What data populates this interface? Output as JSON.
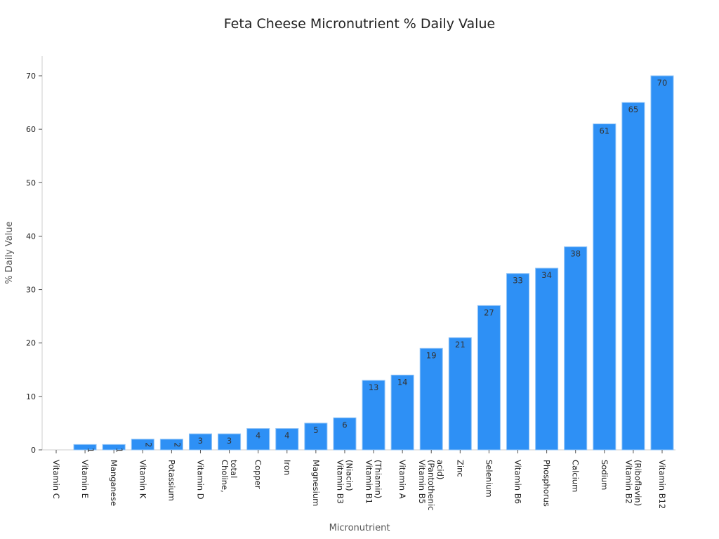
{
  "chart_data": {
    "type": "bar",
    "title": "Feta Cheese Micronutrient % Daily Value",
    "xlabel": "Micronutrient",
    "ylabel": "% Daily Value",
    "ylim": [
      0,
      70
    ],
    "yticks": [
      "0",
      "10",
      "20",
      "30",
      "40",
      "50",
      "60",
      "70"
    ],
    "grid": false,
    "bar_color": "#2e90f5",
    "categories": [
      [
        "Vitamin C"
      ],
      [
        "Vitamin E"
      ],
      [
        "Manganese"
      ],
      [
        "Vitamin K"
      ],
      [
        "Potassium"
      ],
      [
        "Vitamin D"
      ],
      [
        "Choline,",
        "total"
      ],
      [
        "Copper"
      ],
      [
        "Iron"
      ],
      [
        "Magnesium"
      ],
      [
        "Vitamin B3",
        "(Niacin)"
      ],
      [
        "Vitamin B1",
        "(Thiamin)"
      ],
      [
        "Vitamin A"
      ],
      [
        "Vitamin B5",
        "(Pantothenic",
        "acid)"
      ],
      [
        "Zinc"
      ],
      [
        "Selenium"
      ],
      [
        "Vitamin B6"
      ],
      [
        "Phosphorus"
      ],
      [
        "Calcium"
      ],
      [
        "Sodium"
      ],
      [
        "Vitamin B2",
        "(Riboflavin)"
      ],
      [
        "Vitamin B12"
      ]
    ],
    "values": [
      0,
      1,
      1,
      2,
      2,
      3,
      3,
      4,
      4,
      5,
      6,
      13,
      14,
      19,
      21,
      27,
      33,
      34,
      38,
      61,
      65,
      70
    ]
  }
}
